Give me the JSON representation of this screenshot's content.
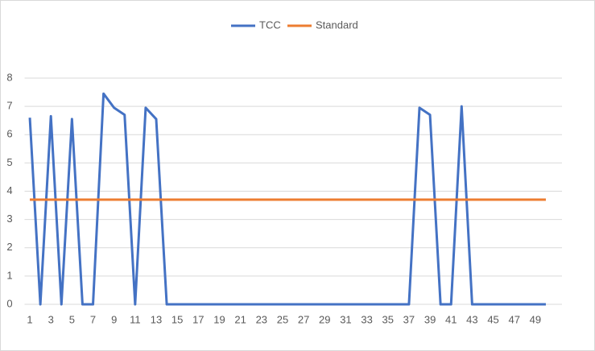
{
  "chart_data": {
    "type": "line",
    "categories": [
      1,
      null,
      3,
      null,
      5,
      null,
      7,
      null,
      9,
      null,
      11,
      null,
      13,
      null,
      15,
      null,
      17,
      null,
      19,
      null,
      21,
      null,
      23,
      null,
      25,
      null,
      27,
      null,
      29,
      null,
      31,
      null,
      33,
      null,
      35,
      null,
      37,
      null,
      39,
      null,
      41,
      null,
      43,
      null,
      45,
      null,
      47,
      null,
      49,
      null
    ],
    "series": [
      {
        "name": "TCC",
        "color": "#4472c4",
        "values": [
          6.6,
          0,
          6.65,
          0,
          6.55,
          0,
          0,
          7.45,
          6.95,
          6.7,
          0,
          6.95,
          6.55,
          0,
          0,
          0,
          0,
          0,
          0,
          0,
          0,
          0,
          0,
          0,
          0,
          0,
          0,
          0,
          0,
          0,
          0,
          0,
          0,
          0,
          0,
          0,
          0,
          6.95,
          6.7,
          0,
          0,
          7.0,
          0,
          0,
          0,
          0,
          0,
          0,
          0,
          0
        ]
      },
      {
        "name": "Standard",
        "color": "#ed7d31",
        "values": [
          3.7,
          3.7,
          3.7,
          3.7,
          3.7,
          3.7,
          3.7,
          3.7,
          3.7,
          3.7,
          3.7,
          3.7,
          3.7,
          3.7,
          3.7,
          3.7,
          3.7,
          3.7,
          3.7,
          3.7,
          3.7,
          3.7,
          3.7,
          3.7,
          3.7,
          3.7,
          3.7,
          3.7,
          3.7,
          3.7,
          3.7,
          3.7,
          3.7,
          3.7,
          3.7,
          3.7,
          3.7,
          3.7,
          3.7,
          3.7,
          3.7,
          3.7,
          3.7,
          3.7,
          3.7,
          3.7,
          3.7,
          3.7,
          3.7,
          3.7
        ]
      }
    ],
    "ylim": [
      0,
      8
    ],
    "yticks": [
      0,
      1,
      2,
      3,
      4,
      5,
      6,
      7,
      8
    ],
    "grid": true,
    "legend": "top"
  }
}
